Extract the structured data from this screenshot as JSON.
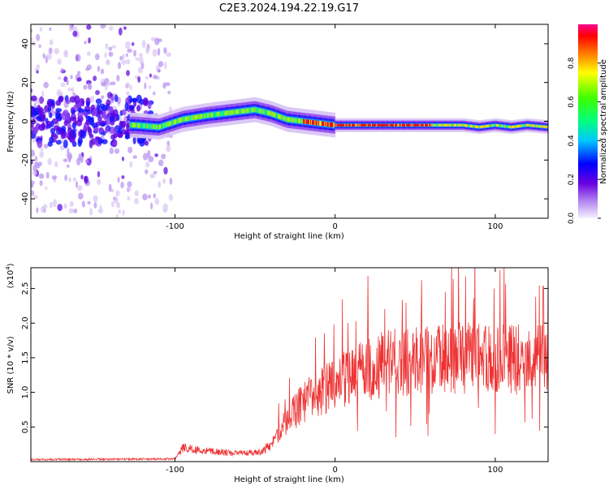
{
  "title": "C2E3.2024.194.22.19.G17",
  "chart_data": [
    {
      "type": "heatmap",
      "xlabel": "Height of straight line (km)",
      "ylabel": "Frequency (Hz)",
      "xlim": [
        -190,
        133
      ],
      "ylim": [
        -50,
        50
      ],
      "xticks": [
        -100,
        0,
        100
      ],
      "yticks": [
        -40,
        -20,
        0,
        20,
        40
      ],
      "colorbar": {
        "label": "Normalized spectral amplitude",
        "range": [
          0,
          1
        ],
        "ticks": [
          "0.0",
          "0.2",
          "0.4",
          "0.6",
          "0.8"
        ]
      },
      "ridge": {
        "x": [
          -125,
          -110,
          -95,
          -80,
          -70,
          -60,
          -50,
          -40,
          -30,
          -20,
          -10,
          0,
          20,
          40,
          60,
          80,
          90,
          100,
          110,
          120,
          133
        ],
        "y": [
          -2,
          -3,
          1,
          3,
          4,
          5,
          6,
          4,
          1,
          0,
          -1,
          -2,
          -2,
          -2,
          -2,
          -2,
          -3,
          -2,
          -3,
          -2,
          -3
        ]
      }
    },
    {
      "type": "line",
      "xlabel": "Height of straight line (km)",
      "ylabel": "SNR (10 * v/v)",
      "yscale_label": "(x10",
      "yscale_exp": "4",
      "xlim": [
        -190,
        133
      ],
      "ylim": [
        0,
        2.8
      ],
      "xticks": [
        -100,
        0,
        100
      ],
      "yticks": [
        "0.5",
        "1.0",
        "1.5",
        "2.0",
        "2.5"
      ],
      "trend": {
        "x": [
          -190,
          -100,
          -95,
          -80,
          -60,
          -45,
          -40,
          -30,
          -20,
          -10,
          0,
          10,
          20,
          30,
          40,
          60,
          80,
          100,
          110,
          120,
          133
        ],
        "y": [
          0.03,
          0.04,
          0.2,
          0.15,
          0.12,
          0.15,
          0.25,
          0.6,
          0.85,
          1.0,
          1.1,
          1.25,
          1.35,
          1.4,
          1.45,
          1.45,
          1.5,
          1.45,
          1.5,
          1.45,
          1.5
        ]
      },
      "color": "#ee3333"
    }
  ]
}
